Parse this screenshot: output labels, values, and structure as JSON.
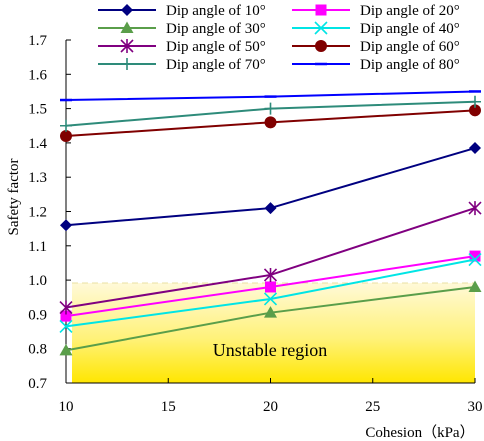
{
  "chart_data": {
    "type": "line",
    "xlabel": "Cohesion（kPa）",
    "ylabel": "Safety factor",
    "xlim": [
      10,
      30
    ],
    "ylim": [
      0.7,
      1.7
    ],
    "xticks": [
      "10",
      "15",
      "20",
      "25",
      "30"
    ],
    "yticks": [
      "0.7",
      "0.8",
      "0.9",
      "1.0",
      "1.1",
      "1.2",
      "1.3",
      "1.4",
      "1.5",
      "1.6",
      "1.7"
    ],
    "x": [
      10,
      20,
      30
    ],
    "grid": false,
    "legend_position": "top",
    "annotation": "Unstable region",
    "unstable_threshold": 1.0,
    "series": [
      {
        "name": "Dip angle of 10°",
        "values": [
          1.16,
          1.21,
          1.385
        ],
        "color": "#000080",
        "marker": "diamond"
      },
      {
        "name": "Dip angle of 20°",
        "values": [
          0.895,
          0.98,
          1.07
        ],
        "color": "#ff00ff",
        "marker": "square"
      },
      {
        "name": "Dip angle of 30°",
        "values": [
          0.795,
          0.905,
          0.98
        ],
        "color": "#5a9e4a",
        "marker": "triangle"
      },
      {
        "name": "Dip angle of 40°",
        "values": [
          0.865,
          0.945,
          1.06
        ],
        "color": "#00e5e5",
        "marker": "x"
      },
      {
        "name": "Dip angle of 50°",
        "values": [
          0.92,
          1.015,
          1.21
        ],
        "color": "#800080",
        "marker": "star"
      },
      {
        "name": "Dip angle of 60°",
        "values": [
          1.42,
          1.46,
          1.495
        ],
        "color": "#800000",
        "marker": "circle"
      },
      {
        "name": "Dip angle of 70°",
        "values": [
          1.45,
          1.5,
          1.52
        ],
        "color": "#2e8b7a",
        "marker": "plus"
      },
      {
        "name": "Dip angle of 80°",
        "values": [
          1.525,
          1.535,
          1.55
        ],
        "color": "#0000ff",
        "marker": "dash"
      }
    ]
  }
}
